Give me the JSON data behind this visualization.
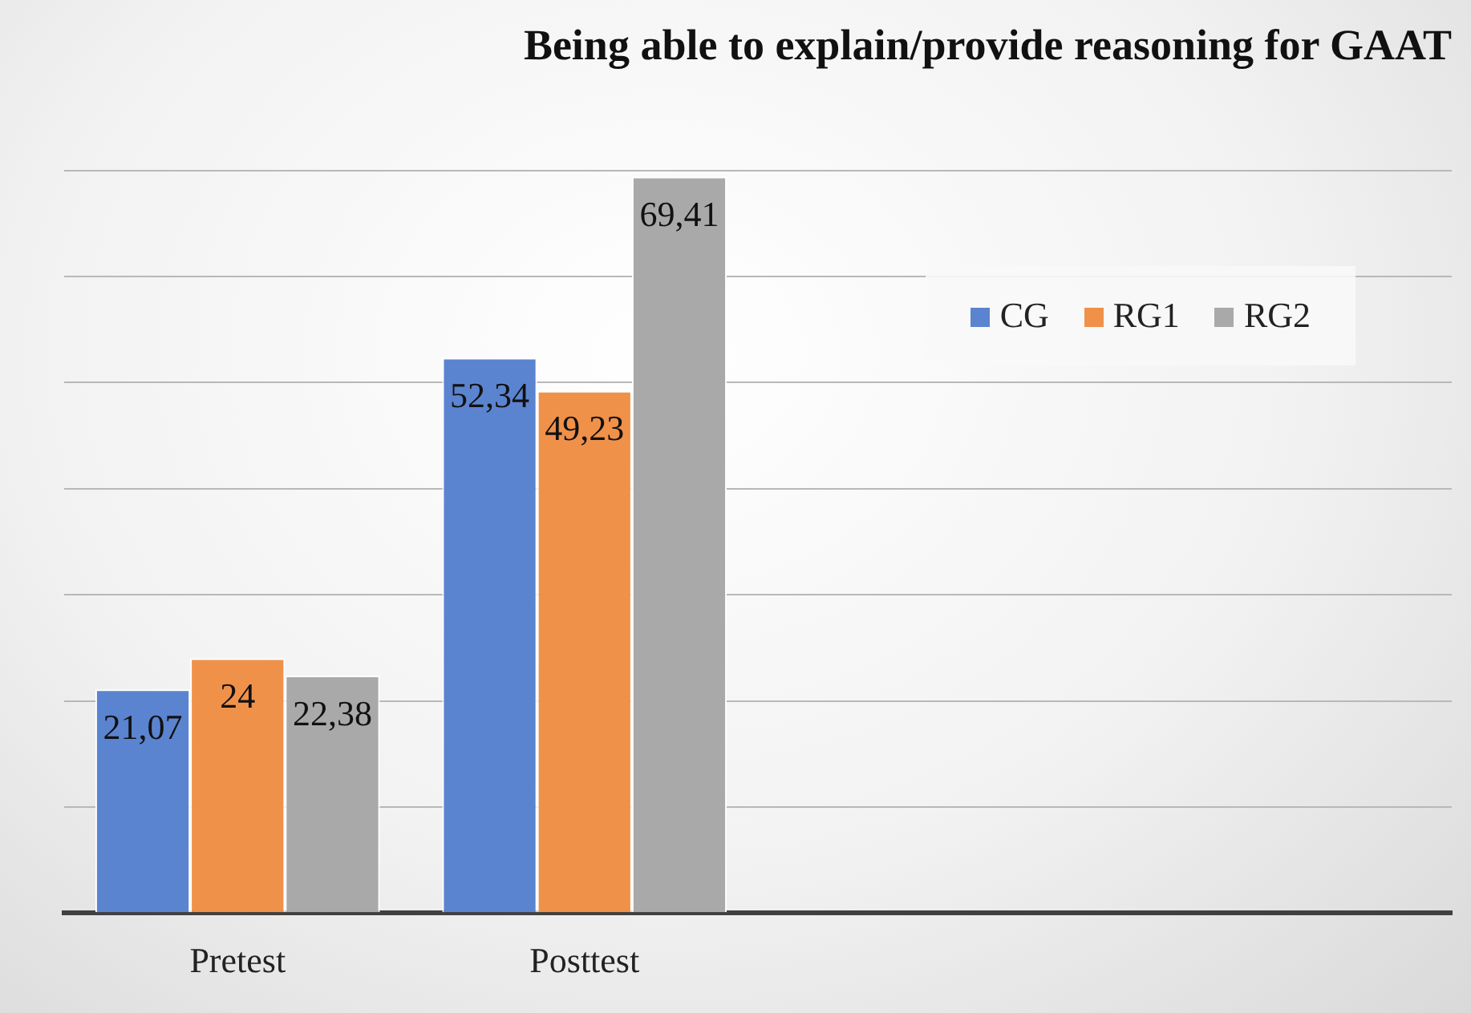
{
  "chart_data": {
    "type": "bar",
    "title": "Being able to explain/provide reasoning for GAAT",
    "categories": [
      "Pretest",
      "Posttest",
      null,
      null
    ],
    "series": [
      {
        "name": "CG",
        "color": "#5b84d0",
        "values": [
          21.07,
          52.34,
          null,
          null
        ],
        "value_labels": [
          "21,07",
          "52,34",
          null,
          null
        ]
      },
      {
        "name": "RG1",
        "color": "#f0914a",
        "values": [
          24,
          49.23,
          null,
          null
        ],
        "value_labels": [
          "24",
          "49,23",
          null,
          null
        ]
      },
      {
        "name": "RG2",
        "color": "#a9a9a9",
        "values": [
          22.38,
          69.41,
          null,
          null
        ],
        "value_labels": [
          "22,38",
          "69,41",
          null,
          null
        ]
      }
    ],
    "ylim": [
      0,
      70
    ],
    "yticks": [
      {
        "value": 0,
        "label": null
      },
      {
        "value": 10,
        "label": null
      },
      {
        "value": 20,
        "label": null
      },
      {
        "value": 30,
        "label": null
      },
      {
        "value": 40,
        "label": null
      },
      {
        "value": 50,
        "label": null
      },
      {
        "value": 60,
        "label": null
      },
      {
        "value": 70,
        "label": null
      }
    ],
    "tick_labels": "x",
    "grid": "y",
    "legend": "top right"
  }
}
